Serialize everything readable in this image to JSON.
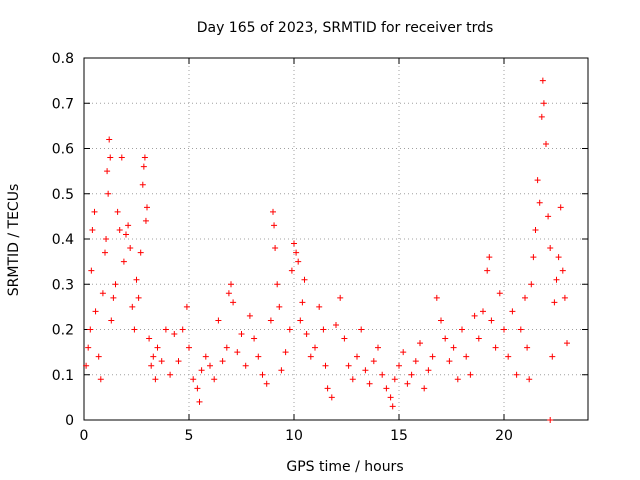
{
  "chart_data": {
    "type": "scatter",
    "title": "Day 165 of 2023, SRMTID for receiver trds",
    "xlabel": "GPS time / hours",
    "ylabel": "SRMTID / TECUs",
    "xlim": [
      0,
      24
    ],
    "ylim": [
      0,
      0.8
    ],
    "xticks": [
      0,
      5,
      10,
      15,
      20
    ],
    "yticks": [
      0,
      0.1,
      0.2,
      0.3,
      0.4,
      0.5,
      0.6,
      0.7,
      0.8
    ],
    "xtick_labels": [
      "0",
      "5",
      "10",
      "15",
      "20"
    ],
    "ytick_labels": [
      "0",
      "0.1",
      "0.2",
      "0.3",
      "0.4",
      "0.5",
      "0.6",
      "0.7",
      "0.8"
    ],
    "grid": true,
    "marker": "plus",
    "series": [
      {
        "name": "trds",
        "color": "#ff0000",
        "points": [
          [
            0.1,
            0.12
          ],
          [
            0.2,
            0.16
          ],
          [
            0.3,
            0.2
          ],
          [
            0.35,
            0.33
          ],
          [
            0.4,
            0.42
          ],
          [
            0.5,
            0.46
          ],
          [
            0.55,
            0.24
          ],
          [
            0.7,
            0.14
          ],
          [
            0.8,
            0.09
          ],
          [
            0.9,
            0.28
          ],
          [
            1.0,
            0.37
          ],
          [
            1.05,
            0.4
          ],
          [
            1.1,
            0.55
          ],
          [
            1.15,
            0.5
          ],
          [
            1.2,
            0.62
          ],
          [
            1.25,
            0.58
          ],
          [
            1.3,
            0.22
          ],
          [
            1.4,
            0.27
          ],
          [
            1.5,
            0.3
          ],
          [
            1.6,
            0.46
          ],
          [
            1.7,
            0.42
          ],
          [
            1.8,
            0.58
          ],
          [
            1.9,
            0.35
          ],
          [
            2.0,
            0.41
          ],
          [
            2.1,
            0.43
          ],
          [
            2.2,
            0.38
          ],
          [
            2.3,
            0.25
          ],
          [
            2.4,
            0.2
          ],
          [
            2.5,
            0.31
          ],
          [
            2.6,
            0.27
          ],
          [
            2.7,
            0.37
          ],
          [
            2.8,
            0.52
          ],
          [
            2.85,
            0.56
          ],
          [
            2.9,
            0.58
          ],
          [
            2.95,
            0.44
          ],
          [
            3.0,
            0.47
          ],
          [
            3.1,
            0.18
          ],
          [
            3.2,
            0.12
          ],
          [
            3.3,
            0.14
          ],
          [
            3.4,
            0.09
          ],
          [
            3.5,
            0.16
          ],
          [
            3.7,
            0.13
          ],
          [
            3.9,
            0.2
          ],
          [
            4.1,
            0.1
          ],
          [
            4.3,
            0.19
          ],
          [
            4.5,
            0.13
          ],
          [
            4.7,
            0.2
          ],
          [
            4.9,
            0.25
          ],
          [
            5.0,
            0.16
          ],
          [
            5.2,
            0.09
          ],
          [
            5.4,
            0.07
          ],
          [
            5.5,
            0.04
          ],
          [
            5.6,
            0.11
          ],
          [
            5.8,
            0.14
          ],
          [
            6.0,
            0.12
          ],
          [
            6.2,
            0.09
          ],
          [
            6.4,
            0.22
          ],
          [
            6.6,
            0.13
          ],
          [
            6.8,
            0.16
          ],
          [
            6.9,
            0.28
          ],
          [
            7.0,
            0.3
          ],
          [
            7.1,
            0.26
          ],
          [
            7.3,
            0.15
          ],
          [
            7.5,
            0.19
          ],
          [
            7.7,
            0.12
          ],
          [
            7.9,
            0.23
          ],
          [
            8.1,
            0.18
          ],
          [
            8.3,
            0.14
          ],
          [
            8.5,
            0.1
          ],
          [
            8.7,
            0.08
          ],
          [
            8.9,
            0.22
          ],
          [
            9.0,
            0.46
          ],
          [
            9.05,
            0.43
          ],
          [
            9.1,
            0.38
          ],
          [
            9.2,
            0.3
          ],
          [
            9.3,
            0.25
          ],
          [
            9.4,
            0.11
          ],
          [
            9.6,
            0.15
          ],
          [
            9.8,
            0.2
          ],
          [
            9.9,
            0.33
          ],
          [
            10.0,
            0.39
          ],
          [
            10.1,
            0.37
          ],
          [
            10.2,
            0.35
          ],
          [
            10.3,
            0.22
          ],
          [
            10.4,
            0.26
          ],
          [
            10.5,
            0.31
          ],
          [
            10.6,
            0.19
          ],
          [
            10.8,
            0.14
          ],
          [
            11.0,
            0.16
          ],
          [
            11.2,
            0.25
          ],
          [
            11.4,
            0.2
          ],
          [
            11.5,
            0.12
          ],
          [
            11.6,
            0.07
          ],
          [
            11.8,
            0.05
          ],
          [
            12.0,
            0.21
          ],
          [
            12.2,
            0.27
          ],
          [
            12.4,
            0.18
          ],
          [
            12.6,
            0.12
          ],
          [
            12.8,
            0.09
          ],
          [
            13.0,
            0.14
          ],
          [
            13.2,
            0.2
          ],
          [
            13.4,
            0.11
          ],
          [
            13.6,
            0.08
          ],
          [
            13.8,
            0.13
          ],
          [
            14.0,
            0.16
          ],
          [
            14.2,
            0.1
          ],
          [
            14.4,
            0.07
          ],
          [
            14.6,
            0.05
          ],
          [
            14.7,
            0.03
          ],
          [
            14.8,
            0.09
          ],
          [
            15.0,
            0.12
          ],
          [
            15.2,
            0.15
          ],
          [
            15.4,
            0.08
          ],
          [
            15.6,
            0.1
          ],
          [
            15.8,
            0.13
          ],
          [
            16.0,
            0.17
          ],
          [
            16.2,
            0.07
          ],
          [
            16.4,
            0.11
          ],
          [
            16.6,
            0.14
          ],
          [
            16.8,
            0.27
          ],
          [
            17.0,
            0.22
          ],
          [
            17.2,
            0.18
          ],
          [
            17.4,
            0.13
          ],
          [
            17.6,
            0.16
          ],
          [
            17.8,
            0.09
          ],
          [
            18.0,
            0.2
          ],
          [
            18.2,
            0.14
          ],
          [
            18.4,
            0.1
          ],
          [
            18.6,
            0.23
          ],
          [
            18.8,
            0.18
          ],
          [
            19.0,
            0.24
          ],
          [
            19.2,
            0.33
          ],
          [
            19.3,
            0.36
          ],
          [
            19.4,
            0.22
          ],
          [
            19.6,
            0.16
          ],
          [
            19.8,
            0.28
          ],
          [
            20.0,
            0.2
          ],
          [
            20.2,
            0.14
          ],
          [
            20.4,
            0.24
          ],
          [
            20.6,
            0.1
          ],
          [
            20.8,
            0.2
          ],
          [
            21.0,
            0.27
          ],
          [
            21.1,
            0.16
          ],
          [
            21.2,
            0.09
          ],
          [
            21.3,
            0.3
          ],
          [
            21.4,
            0.36
          ],
          [
            21.5,
            0.42
          ],
          [
            21.6,
            0.53
          ],
          [
            21.7,
            0.48
          ],
          [
            21.8,
            0.67
          ],
          [
            21.85,
            0.75
          ],
          [
            21.9,
            0.7
          ],
          [
            22.0,
            0.61
          ],
          [
            22.1,
            0.45
          ],
          [
            22.2,
            0.38
          ],
          [
            22.3,
            0.14
          ],
          [
            22.4,
            0.26
          ],
          [
            22.5,
            0.31
          ],
          [
            22.6,
            0.36
          ],
          [
            22.7,
            0.47
          ],
          [
            22.8,
            0.33
          ],
          [
            22.9,
            0.27
          ],
          [
            23.0,
            0.17
          ],
          [
            22.2,
            0.0
          ]
        ]
      }
    ]
  }
}
